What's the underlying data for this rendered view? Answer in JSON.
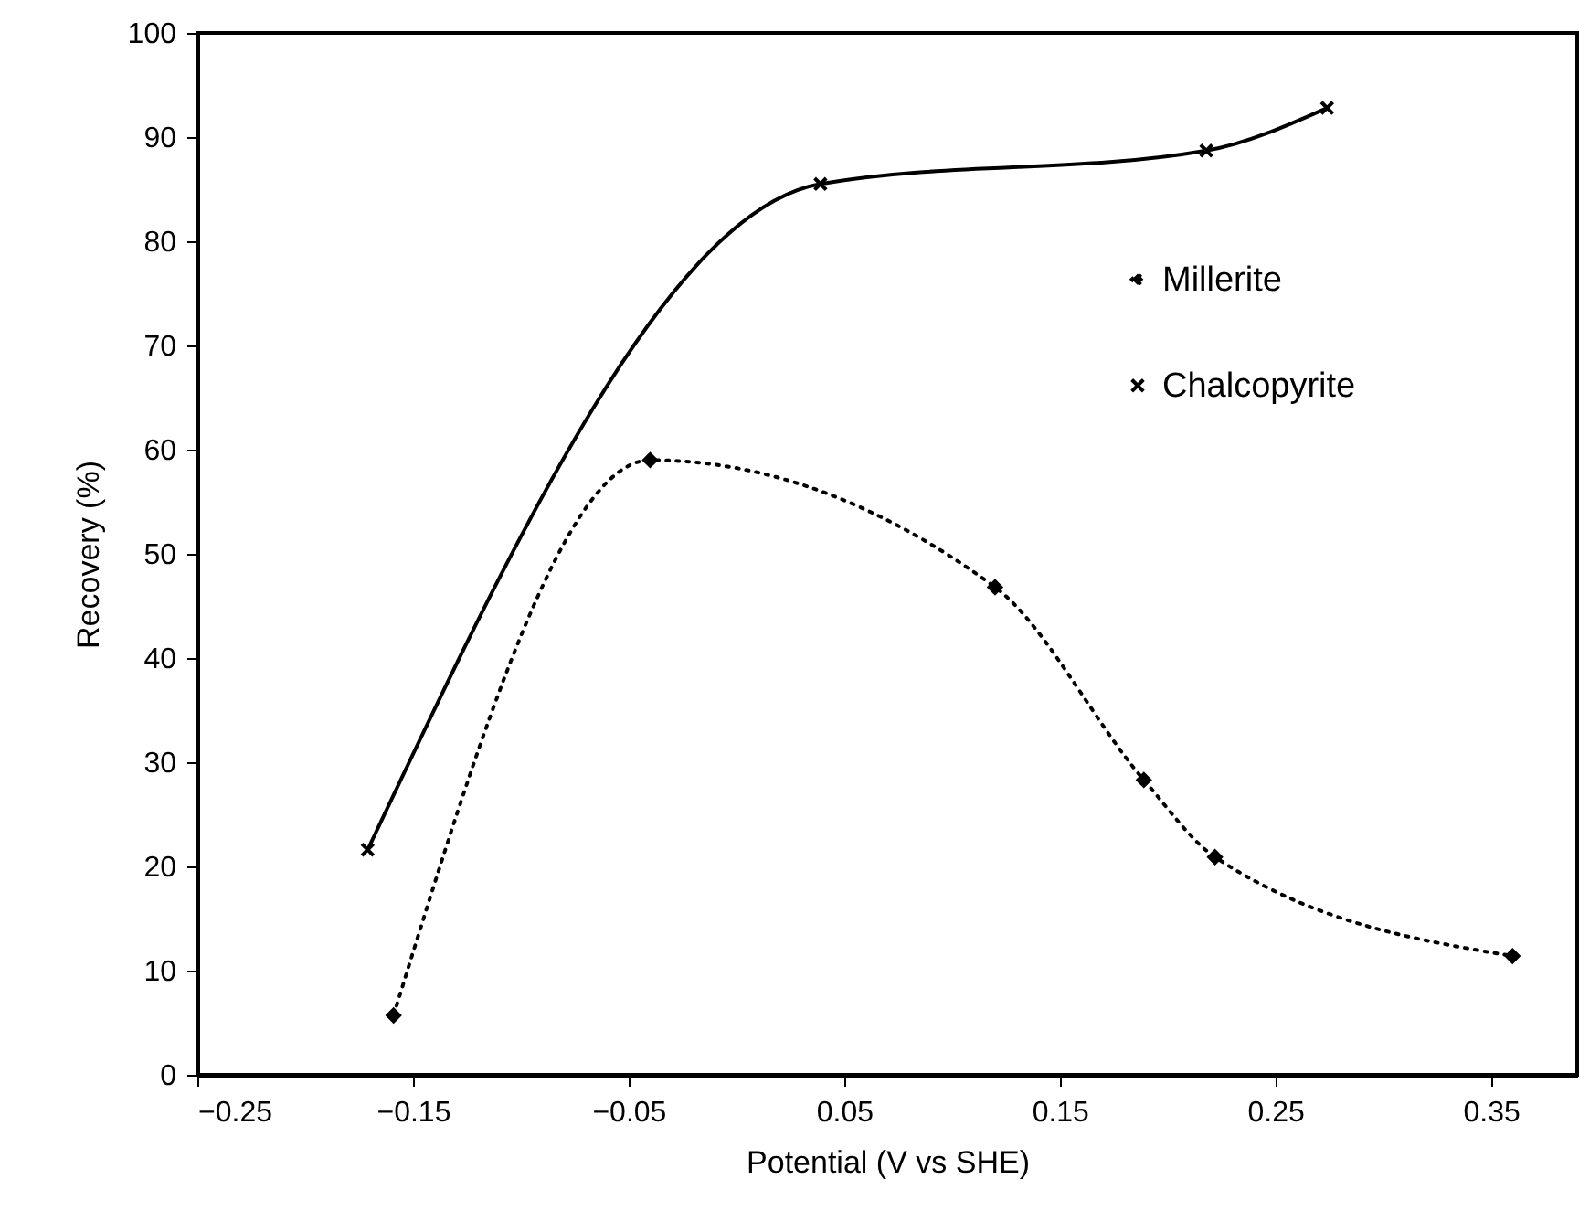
{
  "chart_data": {
    "type": "line",
    "xlabel": "Potential (V vs SHE)",
    "ylabel": "Recovery (%)",
    "xlim": [
      -0.25,
      0.39
    ],
    "xticks": [
      -0.25,
      -0.15,
      -0.05,
      0.05,
      0.15,
      0.25,
      0.35
    ],
    "ylim": [
      0,
      100
    ],
    "yticks": [
      0,
      10,
      20,
      30,
      40,
      50,
      60,
      70,
      80,
      90,
      100
    ],
    "grid": false,
    "legend": "right",
    "series": [
      {
        "name": "Millerite",
        "color": "#000000",
        "marker": "diamond",
        "line_style": "dotted",
        "x": [
          -0.159,
          -0.04,
          0.12,
          0.189,
          0.222,
          0.36
        ],
        "values": [
          5.7,
          59.0,
          46.8,
          28.3,
          20.9,
          11.4
        ]
      },
      {
        "name": "Chalcopyrite",
        "color": "#000000",
        "marker": "cross",
        "line_style": "solid",
        "x": [
          -0.171,
          0.039,
          0.218,
          0.274
        ],
        "values": [
          21.6,
          85.5,
          88.7,
          92.8
        ]
      }
    ]
  }
}
